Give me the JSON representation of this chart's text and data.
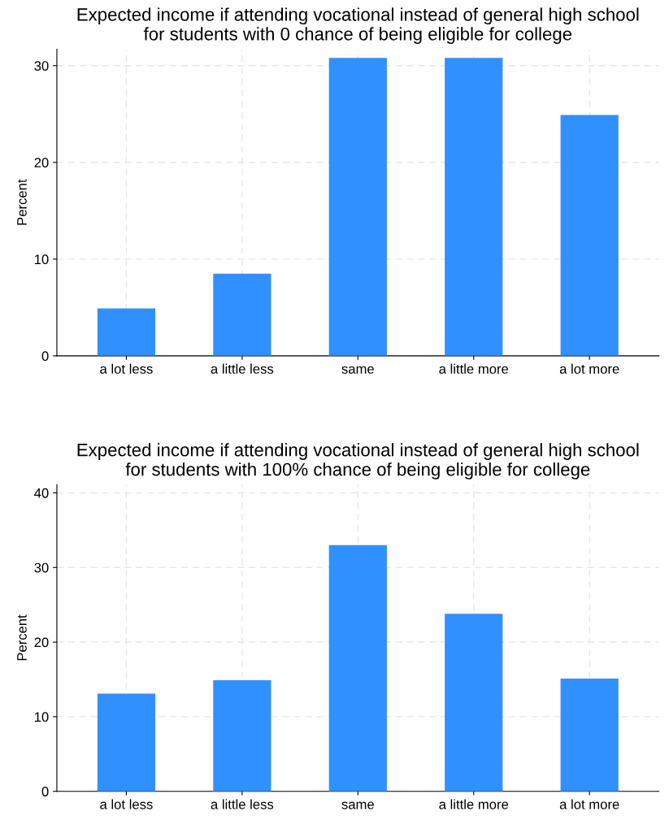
{
  "chart_data": [
    {
      "type": "bar",
      "title": "Expected income if attending vocational instead of general high school\nfor students with 0 chance of being eligible for college",
      "ylabel": "Percent",
      "categories": [
        "a lot less",
        "a little less",
        "same",
        "a little more",
        "a lot more"
      ],
      "values": [
        4.9,
        8.5,
        30.8,
        30.8,
        24.9
      ],
      "color": "#3190ff",
      "ylim": [
        0,
        31.7
      ],
      "yticks": [
        0,
        10,
        20,
        30
      ],
      "grid": true
    },
    {
      "type": "bar",
      "title": "Expected income if attending vocational instead of general high school\nfor students with 100% chance of being eligible for college",
      "ylabel": "Percent",
      "categories": [
        "a lot less",
        "a little less",
        "same",
        "a little more",
        "a lot more"
      ],
      "values": [
        13.1,
        14.9,
        33.0,
        23.8,
        15.1
      ],
      "color": "#3190ff",
      "ylim": [
        0,
        41.1
      ],
      "yticks": [
        0,
        10,
        20,
        30,
        40
      ],
      "grid": true
    }
  ]
}
